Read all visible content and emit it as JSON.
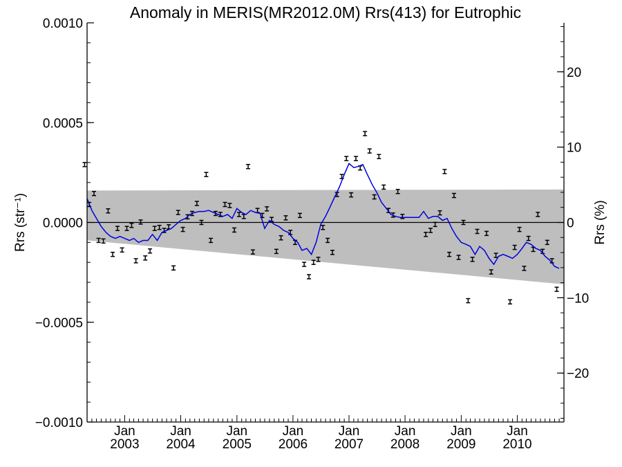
{
  "chart_data": {
    "type": "line",
    "title": "Anomaly in MERIS(MR2012.0M) Rrs(413) for Eutrophic",
    "ylabel": "Rrs (str⁻¹)",
    "ylabel_right": "Rrs (%)",
    "xlabel": "",
    "ylim": [
      -0.001,
      0.001
    ],
    "ylim_right": [
      -26.5,
      26.5
    ],
    "x_range": [
      "2002-05-01",
      "2010-11-01"
    ],
    "x_ticks": [
      {
        "date": "2003-01-01",
        "month": "Jan",
        "year": "2003"
      },
      {
        "date": "2004-01-01",
        "month": "Jan",
        "year": "2004"
      },
      {
        "date": "2005-01-01",
        "month": "Jan",
        "year": "2005"
      },
      {
        "date": "2006-01-01",
        "month": "Jan",
        "year": "2006"
      },
      {
        "date": "2007-01-01",
        "month": "Jan",
        "year": "2007"
      },
      {
        "date": "2008-01-01",
        "month": "Jan",
        "year": "2008"
      },
      {
        "date": "2009-01-01",
        "month": "Jan",
        "year": "2009"
      },
      {
        "date": "2010-01-01",
        "month": "Jan",
        "year": "2010"
      }
    ],
    "y_ticks_left": [
      "0.0010",
      "0.0005",
      "0.0000",
      "−0.0005",
      "−0.0010"
    ],
    "y_tick_values_left": [
      0.001,
      0.0005,
      0.0,
      -0.0005,
      -0.001
    ],
    "y_ticks_right": [
      "20",
      "10",
      "0",
      "−10",
      "−20"
    ],
    "y_tick_values_right": [
      20,
      10,
      0,
      -10,
      -20
    ],
    "band": {
      "start": {
        "x": "2002-05-01",
        "upper": 0.00016,
        "lower": -9e-05
      },
      "end": {
        "x": "2010-11-01",
        "upper": 0.000165,
        "lower": -0.00031
      },
      "color": "#bebebe"
    },
    "zero_line": 0,
    "series": [
      {
        "type": "errorbar",
        "color": "#000000",
        "points": [
          {
            "x": "2002-04-15",
            "y": 0.00029
          },
          {
            "x": "2002-05-15",
            "y": 9e-05
          },
          {
            "x": "2002-06-15",
            "y": 0.000145
          },
          {
            "x": "2002-07-15",
            "y": -9e-05
          },
          {
            "x": "2002-08-15",
            "y": -9.3e-05
          },
          {
            "x": "2002-09-15",
            "y": 5.8e-05
          },
          {
            "x": "2002-10-15",
            "y": -0.00016
          },
          {
            "x": "2002-11-15",
            "y": -3e-05
          },
          {
            "x": "2002-12-15",
            "y": -0.000138
          },
          {
            "x": "2003-01-15",
            "y": -3e-05
          },
          {
            "x": "2003-02-15",
            "y": -1.5e-05
          },
          {
            "x": "2003-03-15",
            "y": -0.000192
          },
          {
            "x": "2003-04-15",
            "y": 2e-06
          },
          {
            "x": "2003-05-15",
            "y": -0.000178
          },
          {
            "x": "2003-06-15",
            "y": -0.000143
          },
          {
            "x": "2003-07-15",
            "y": -3e-05
          },
          {
            "x": "2003-08-15",
            "y": -2.5e-05
          },
          {
            "x": "2003-09-15",
            "y": -4e-05
          },
          {
            "x": "2003-10-15",
            "y": -2.2e-05
          },
          {
            "x": "2003-11-15",
            "y": -0.000228
          },
          {
            "x": "2003-12-15",
            "y": 5e-05
          },
          {
            "x": "2004-01-15",
            "y": -3.5e-05
          },
          {
            "x": "2004-02-15",
            "y": 2.8e-05
          },
          {
            "x": "2004-03-15",
            "y": 4.5e-05
          },
          {
            "x": "2004-04-15",
            "y": 9.5e-05
          },
          {
            "x": "2004-05-15",
            "y": 0.0
          },
          {
            "x": "2004-06-15",
            "y": 0.00024
          },
          {
            "x": "2004-07-15",
            "y": -9e-05
          },
          {
            "x": "2004-08-15",
            "y": 4.5e-05
          },
          {
            "x": "2004-09-15",
            "y": 4e-05
          },
          {
            "x": "2004-10-15",
            "y": 9e-05
          },
          {
            "x": "2004-11-15",
            "y": 8.5e-05
          },
          {
            "x": "2004-12-15",
            "y": -3.8e-05
          },
          {
            "x": "2005-01-15",
            "y": 4e-05
          },
          {
            "x": "2005-02-15",
            "y": 3e-05
          },
          {
            "x": "2005-03-15",
            "y": 0.00028
          },
          {
            "x": "2005-04-15",
            "y": -0.000148
          },
          {
            "x": "2005-05-15",
            "y": 6e-05
          },
          {
            "x": "2005-06-15",
            "y": 3.5e-05
          },
          {
            "x": "2005-07-15",
            "y": 6.8e-05
          },
          {
            "x": "2005-08-15",
            "y": 1.5e-05
          },
          {
            "x": "2005-09-15",
            "y": -0.000145
          },
          {
            "x": "2005-10-15",
            "y": -7.7e-05
          },
          {
            "x": "2005-11-15",
            "y": 2.3e-05
          },
          {
            "x": "2005-12-15",
            "y": -5e-05
          },
          {
            "x": "2006-01-15",
            "y": -0.0001
          },
          {
            "x": "2006-02-15",
            "y": 3.5e-05
          },
          {
            "x": "2006-03-15",
            "y": -0.00021
          },
          {
            "x": "2006-04-15",
            "y": -0.000272
          },
          {
            "x": "2006-05-15",
            "y": -0.0002
          },
          {
            "x": "2006-06-15",
            "y": -0.000185
          },
          {
            "x": "2006-07-15",
            "y": -2.5e-05
          },
          {
            "x": "2006-08-15",
            "y": -9e-05
          },
          {
            "x": "2006-09-15",
            "y": -0.00015
          },
          {
            "x": "2006-10-15",
            "y": 0.00014
          },
          {
            "x": "2006-11-15",
            "y": 0.00023
          },
          {
            "x": "2006-12-15",
            "y": 0.00032
          },
          {
            "x": "2007-01-15",
            "y": 0.000138
          },
          {
            "x": "2007-02-15",
            "y": 0.00032
          },
          {
            "x": "2007-03-15",
            "y": 0.000273
          },
          {
            "x": "2007-04-15",
            "y": 0.000445
          },
          {
            "x": "2007-05-15",
            "y": 0.000358
          },
          {
            "x": "2007-06-15",
            "y": 0.000128
          },
          {
            "x": "2007-07-15",
            "y": 0.00033
          },
          {
            "x": "2007-08-15",
            "y": 0.000177
          },
          {
            "x": "2007-09-15",
            "y": 6e-05
          },
          {
            "x": "2007-10-15",
            "y": 3.7e-05
          },
          {
            "x": "2007-11-15",
            "y": 0.000155
          },
          {
            "x": "2007-12-15",
            "y": 3e-05
          },
          {
            "x": "2008-05-15",
            "y": -6e-05
          },
          {
            "x": "2008-06-15",
            "y": -4e-05
          },
          {
            "x": "2008-07-15",
            "y": -1e-05
          },
          {
            "x": "2008-08-15",
            "y": 4.8e-05
          },
          {
            "x": "2008-09-15",
            "y": 0.000255
          },
          {
            "x": "2008-10-15",
            "y": -0.00016
          },
          {
            "x": "2008-11-15",
            "y": 0.000135
          },
          {
            "x": "2008-12-15",
            "y": -0.000175
          },
          {
            "x": "2009-01-15",
            "y": 0.0
          },
          {
            "x": "2009-02-15",
            "y": -0.000392
          },
          {
            "x": "2009-03-15",
            "y": -0.000185
          },
          {
            "x": "2009-04-15",
            "y": -4.5e-05
          },
          {
            "x": "2009-06-15",
            "y": -5.5e-05
          },
          {
            "x": "2009-07-15",
            "y": -0.000248
          },
          {
            "x": "2009-08-15",
            "y": -0.000165
          },
          {
            "x": "2009-11-15",
            "y": -0.000398
          },
          {
            "x": "2009-12-15",
            "y": -0.000125
          },
          {
            "x": "2010-01-15",
            "y": -3.5e-05
          },
          {
            "x": "2010-02-15",
            "y": -0.00023
          },
          {
            "x": "2010-03-15",
            "y": -8e-05
          },
          {
            "x": "2010-04-15",
            "y": -0.000135
          },
          {
            "x": "2010-05-15",
            "y": 4e-05
          },
          {
            "x": "2010-06-15",
            "y": -0.000145
          },
          {
            "x": "2010-07-15",
            "y": -0.0001
          },
          {
            "x": "2010-08-15",
            "y": -0.000192
          },
          {
            "x": "2010-09-15",
            "y": -0.000335
          }
        ]
      },
      {
        "type": "line",
        "color": "#0000dd",
        "points": [
          {
            "x": "2002-05-01",
            "y": 0.00012
          },
          {
            "x": "2002-06-01",
            "y": 6e-05
          },
          {
            "x": "2002-07-01",
            "y": 2e-05
          },
          {
            "x": "2002-08-01",
            "y": -2e-05
          },
          {
            "x": "2002-09-01",
            "y": -5e-05
          },
          {
            "x": "2002-10-01",
            "y": -7e-05
          },
          {
            "x": "2002-11-01",
            "y": -8e-05
          },
          {
            "x": "2002-12-01",
            "y": -7e-05
          },
          {
            "x": "2003-01-01",
            "y": -8e-05
          },
          {
            "x": "2003-02-01",
            "y": -9e-05
          },
          {
            "x": "2003-03-01",
            "y": -8e-05
          },
          {
            "x": "2003-04-01",
            "y": -0.0001
          },
          {
            "x": "2003-05-01",
            "y": -9e-05
          },
          {
            "x": "2003-06-01",
            "y": -9e-05
          },
          {
            "x": "2003-07-01",
            "y": -6e-05
          },
          {
            "x": "2003-08-01",
            "y": -9e-05
          },
          {
            "x": "2003-09-01",
            "y": -5e-05
          },
          {
            "x": "2003-10-01",
            "y": -4e-05
          },
          {
            "x": "2003-11-01",
            "y": -3e-05
          },
          {
            "x": "2003-12-01",
            "y": -1e-05
          },
          {
            "x": "2004-01-01",
            "y": 1e-05
          },
          {
            "x": "2004-02-01",
            "y": 2e-05
          },
          {
            "x": "2004-03-01",
            "y": 4e-05
          },
          {
            "x": "2004-04-01",
            "y": 5e-05
          },
          {
            "x": "2004-05-01",
            "y": 5.5e-05
          },
          {
            "x": "2004-06-01",
            "y": 5.5e-05
          },
          {
            "x": "2004-07-01",
            "y": 6e-05
          },
          {
            "x": "2004-08-01",
            "y": 5e-05
          },
          {
            "x": "2004-09-01",
            "y": 4e-05
          },
          {
            "x": "2004-10-01",
            "y": 3e-05
          },
          {
            "x": "2004-11-01",
            "y": 4e-05
          },
          {
            "x": "2004-12-01",
            "y": 2e-05
          },
          {
            "x": "2005-01-01",
            "y": 7e-05
          },
          {
            "x": "2005-02-01",
            "y": 5e-05
          },
          {
            "x": "2005-03-01",
            "y": 4e-05
          },
          {
            "x": "2005-04-01",
            "y": 6e-05
          },
          {
            "x": "2005-05-01",
            "y": 5e-05
          },
          {
            "x": "2005-06-01",
            "y": 4.5e-05
          },
          {
            "x": "2005-07-01",
            "y": -3e-05
          },
          {
            "x": "2005-08-01",
            "y": 1e-05
          },
          {
            "x": "2005-09-01",
            "y": -1e-05
          },
          {
            "x": "2005-10-01",
            "y": -2e-05
          },
          {
            "x": "2005-11-01",
            "y": -4e-05
          },
          {
            "x": "2005-12-01",
            "y": -5e-05
          },
          {
            "x": "2006-01-01",
            "y": -8e-05
          },
          {
            "x": "2006-02-01",
            "y": -0.0001
          },
          {
            "x": "2006-03-01",
            "y": -0.00014
          },
          {
            "x": "2006-04-01",
            "y": -0.00013
          },
          {
            "x": "2006-05-01",
            "y": -0.00016
          },
          {
            "x": "2006-06-01",
            "y": -0.0001
          },
          {
            "x": "2006-07-01",
            "y": -1e-05
          },
          {
            "x": "2006-08-01",
            "y": 3e-05
          },
          {
            "x": "2006-09-01",
            "y": 8e-05
          },
          {
            "x": "2006-10-01",
            "y": 0.00013
          },
          {
            "x": "2006-11-01",
            "y": 0.00018
          },
          {
            "x": "2006-12-01",
            "y": 0.00024
          },
          {
            "x": "2007-01-01",
            "y": 0.000295
          },
          {
            "x": "2007-02-01",
            "y": 0.000275
          },
          {
            "x": "2007-03-01",
            "y": 0.00028
          },
          {
            "x": "2007-04-01",
            "y": 0.00029
          },
          {
            "x": "2007-05-01",
            "y": 0.00024
          },
          {
            "x": "2007-06-01",
            "y": 0.00019
          },
          {
            "x": "2007-07-01",
            "y": 0.00015
          },
          {
            "x": "2007-08-01",
            "y": 0.0001
          },
          {
            "x": "2007-09-01",
            "y": 7e-05
          },
          {
            "x": "2007-10-01",
            "y": 4e-05
          },
          {
            "x": "2007-11-01",
            "y": 3e-05
          },
          {
            "x": "2007-12-01",
            "y": 2.5e-05
          },
          {
            "x": "2008-02-01",
            "y": 2.5e-05
          },
          {
            "x": "2008-04-01",
            "y": 2.5e-05
          },
          {
            "x": "2008-05-01",
            "y": 5.5e-05
          },
          {
            "x": "2008-06-01",
            "y": 2e-05
          },
          {
            "x": "2008-07-01",
            "y": 3e-05
          },
          {
            "x": "2008-08-01",
            "y": 3e-05
          },
          {
            "x": "2008-09-01",
            "y": 1e-05
          },
          {
            "x": "2008-10-01",
            "y": 2e-05
          },
          {
            "x": "2008-11-01",
            "y": -3e-05
          },
          {
            "x": "2008-12-01",
            "y": -7e-05
          },
          {
            "x": "2009-01-01",
            "y": -0.0001
          },
          {
            "x": "2009-02-01",
            "y": -0.00011
          },
          {
            "x": "2009-03-01",
            "y": -0.00012
          },
          {
            "x": "2009-04-01",
            "y": -0.00016
          },
          {
            "x": "2009-05-01",
            "y": -0.00012
          },
          {
            "x": "2009-06-01",
            "y": -0.00014
          },
          {
            "x": "2009-07-01",
            "y": -0.00018
          },
          {
            "x": "2009-08-01",
            "y": -0.00021
          },
          {
            "x": "2009-09-01",
            "y": -0.00017
          },
          {
            "x": "2009-10-01",
            "y": -0.00016
          },
          {
            "x": "2009-11-01",
            "y": -0.00017
          },
          {
            "x": "2009-12-01",
            "y": -0.00018
          },
          {
            "x": "2010-01-01",
            "y": -0.00016
          },
          {
            "x": "2010-02-01",
            "y": -0.00013
          },
          {
            "x": "2010-03-01",
            "y": -0.0001
          },
          {
            "x": "2010-04-01",
            "y": -0.00011
          },
          {
            "x": "2010-05-01",
            "y": -0.00013
          },
          {
            "x": "2010-06-01",
            "y": -0.00014
          },
          {
            "x": "2010-07-01",
            "y": -0.00017
          },
          {
            "x": "2010-08-01",
            "y": -0.00019
          },
          {
            "x": "2010-09-01",
            "y": -0.00022
          },
          {
            "x": "2010-10-01",
            "y": -0.00023
          }
        ]
      }
    ],
    "grid": false,
    "legend": "none"
  }
}
